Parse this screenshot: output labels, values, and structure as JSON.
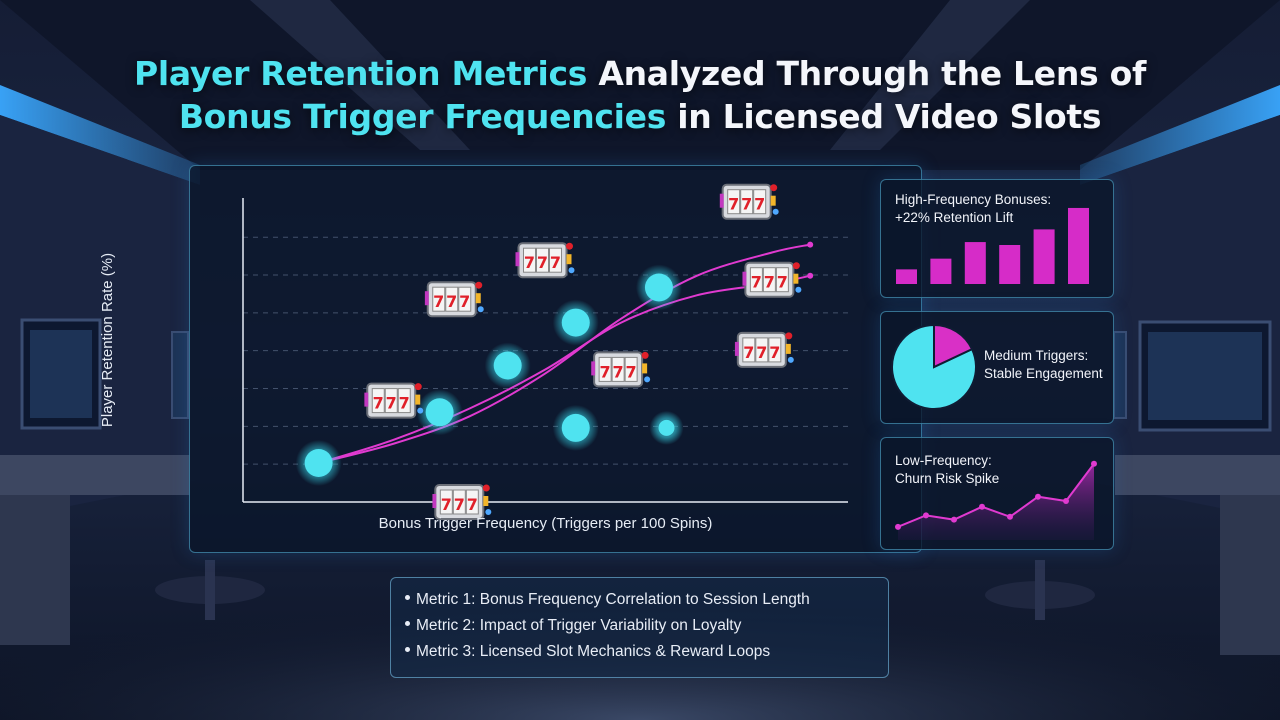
{
  "title": {
    "line1_highlight": "Player Retention Metrics",
    "line1_rest": " Analyzed Through the Lens of",
    "line2_highlight": "Bonus Trigger Frequencies",
    "line2_rest": " in Licensed Video Slots"
  },
  "colors": {
    "accent_cyan": "#4fe3f0",
    "accent_magenta": "#e03ad0",
    "title_white": "#f4f6fb"
  },
  "icons": {
    "slot_icon": "slot-machine-777-icon"
  },
  "chart_data": [
    {
      "type": "scatter",
      "title": "",
      "xlabel": "Bonus Trigger Frequency (Triggers per 100 Spins)",
      "ylabel": "Player Retention Rate (%)",
      "grid": "horizontal dashed",
      "points": [
        {
          "x": 1.0,
          "y": 1.0
        },
        {
          "x": 2.6,
          "y": 2.3
        },
        {
          "x": 3.5,
          "y": 3.5
        },
        {
          "x": 4.4,
          "y": 4.6
        },
        {
          "x": 4.4,
          "y": 1.9
        },
        {
          "x": 5.5,
          "y": 5.5
        },
        {
          "x": 5.6,
          "y": 1.9
        }
      ],
      "series": [
        {
          "name": "",
          "x": [
            1,
            2,
            3,
            4,
            5,
            6,
            7,
            7.5
          ],
          "y": [
            1.0,
            1.5,
            2.2,
            3.3,
            4.7,
            5.8,
            6.4,
            6.6
          ]
        },
        {
          "name": "",
          "x": [
            1,
            2,
            3,
            4,
            5,
            6,
            7,
            7.5
          ],
          "y": [
            1.0,
            1.6,
            2.4,
            3.4,
            4.6,
            5.3,
            5.6,
            5.8
          ]
        }
      ],
      "slot_markers": [
        {
          "x": 2.0,
          "y": 2.6
        },
        {
          "x": 2.8,
          "y": 5.2
        },
        {
          "x": 4.0,
          "y": 6.2
        },
        {
          "x": 2.9,
          "y": 0.0
        },
        {
          "x": 5.0,
          "y": 3.4
        },
        {
          "x": 6.7,
          "y": 7.7
        },
        {
          "x": 7.0,
          "y": 5.7
        },
        {
          "x": 6.9,
          "y": 3.9
        }
      ],
      "xlim": [
        0,
        8
      ],
      "ylim": [
        0,
        8
      ]
    },
    {
      "type": "bar",
      "title": "High-Frequency Bonuses:",
      "subtitle": "+22% Retention Lift",
      "values": [
        1.5,
        2.6,
        4.3,
        4.0,
        5.6,
        7.8
      ],
      "ylim": [
        0,
        8
      ]
    },
    {
      "type": "pie",
      "title": "Medium Triggers:",
      "subtitle": "Stable Engagement",
      "slices": [
        {
          "value": 82,
          "color": "#4fe3f0"
        },
        {
          "value": 18,
          "color": "#d930c6"
        }
      ]
    },
    {
      "type": "area",
      "title": "Low-Frequency:",
      "subtitle": "Churn Risk Spike",
      "values": [
        0.5,
        1.3,
        1.0,
        1.9,
        1.2,
        2.6,
        2.3,
        4.9
      ],
      "ylim": [
        0,
        6
      ]
    }
  ],
  "metrics": [
    "Metric 1: Bonus Frequency Correlation to Session Length",
    "Metric 2: Impact of Trigger Variability on Loyalty",
    "Metric 3: Licensed Slot Mechanics & Reward Loops"
  ]
}
